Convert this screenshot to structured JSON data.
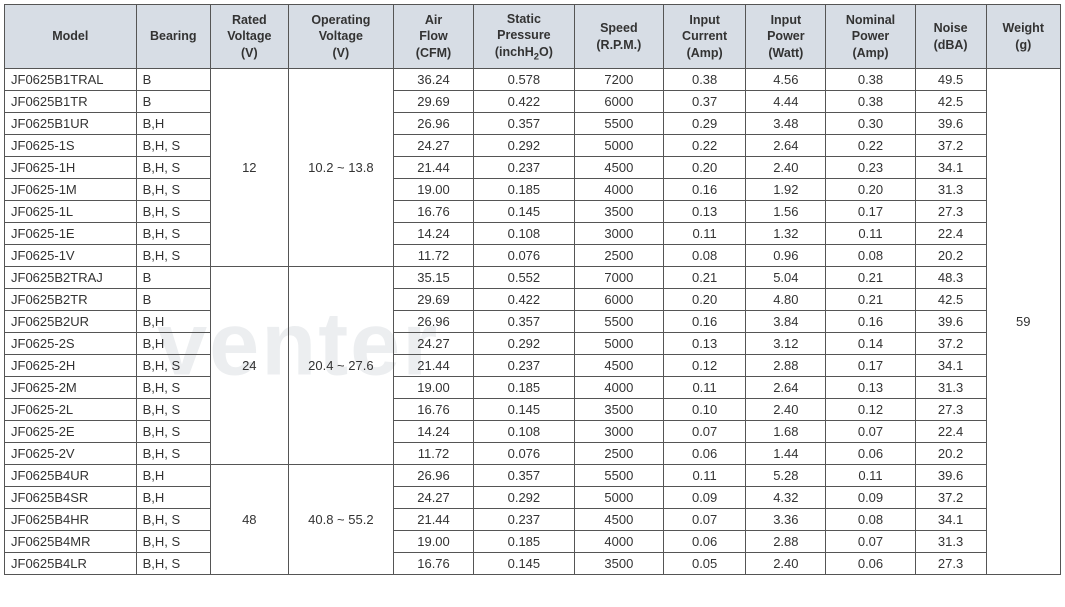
{
  "columns": [
    {
      "label": "Model",
      "class": "col-model"
    },
    {
      "label": "Bearing",
      "class": "col-bearing"
    },
    {
      "label": "Rated\nVoltage\n(V)",
      "class": "col-rated-v"
    },
    {
      "label": "Operating\nVoltage\n(V)",
      "class": "col-op-v"
    },
    {
      "label": "Air\nFlow\n(CFM)",
      "class": "col-air"
    },
    {
      "label": "Static\nPressure\n(inchH₂O)",
      "class": "col-static"
    },
    {
      "label": "Speed\n(R.P.M.)",
      "class": "col-speed"
    },
    {
      "label": "Input\nCurrent\n(Amp)",
      "class": "col-in-cur"
    },
    {
      "label": "Input\nPower\n(Watt)",
      "class": "col-in-pow"
    },
    {
      "label": "Nominal\nPower\n(Amp)",
      "class": "col-nom-pow"
    },
    {
      "label": "Noise\n(dBA)",
      "class": "col-noise"
    },
    {
      "label": "Weight\n(g)",
      "class": "col-weight"
    }
  ],
  "groups": [
    {
      "rated_voltage": "12",
      "operating_voltage": "10.2 ~ 13.8",
      "rows": [
        {
          "model": "JF0625B1TRAL",
          "bearing": "B",
          "air": "36.24",
          "static": "0.578",
          "speed": "7200",
          "in_cur": "0.38",
          "in_pow": "4.56",
          "nom_pow": "0.38",
          "noise": "49.5"
        },
        {
          "model": "JF0625B1TR",
          "bearing": "B",
          "air": "29.69",
          "static": "0.422",
          "speed": "6000",
          "in_cur": "0.37",
          "in_pow": "4.44",
          "nom_pow": "0.38",
          "noise": "42.5"
        },
        {
          "model": "JF0625B1UR",
          "bearing": "B,H",
          "air": "26.96",
          "static": "0.357",
          "speed": "5500",
          "in_cur": "0.29",
          "in_pow": "3.48",
          "nom_pow": "0.30",
          "noise": "39.6"
        },
        {
          "model": "JF0625-1S",
          "bearing": "B,H, S",
          "air": "24.27",
          "static": "0.292",
          "speed": "5000",
          "in_cur": "0.22",
          "in_pow": "2.64",
          "nom_pow": "0.22",
          "noise": "37.2"
        },
        {
          "model": "JF0625-1H",
          "bearing": "B,H, S",
          "air": "21.44",
          "static": "0.237",
          "speed": "4500",
          "in_cur": "0.20",
          "in_pow": "2.40",
          "nom_pow": "0.23",
          "noise": "34.1"
        },
        {
          "model": "JF0625-1M",
          "bearing": "B,H, S",
          "air": "19.00",
          "static": "0.185",
          "speed": "4000",
          "in_cur": "0.16",
          "in_pow": "1.92",
          "nom_pow": "0.20",
          "noise": "31.3"
        },
        {
          "model": "JF0625-1L",
          "bearing": "B,H, S",
          "air": "16.76",
          "static": "0.145",
          "speed": "3500",
          "in_cur": "0.13",
          "in_pow": "1.56",
          "nom_pow": "0.17",
          "noise": "27.3"
        },
        {
          "model": "JF0625-1E",
          "bearing": "B,H, S",
          "air": "14.24",
          "static": "0.108",
          "speed": "3000",
          "in_cur": "0.11",
          "in_pow": "1.32",
          "nom_pow": "0.11",
          "noise": "22.4"
        },
        {
          "model": "JF0625-1V",
          "bearing": "B,H, S",
          "air": "11.72",
          "static": "0.076",
          "speed": "2500",
          "in_cur": "0.08",
          "in_pow": "0.96",
          "nom_pow": "0.08",
          "noise": "20.2"
        }
      ]
    },
    {
      "rated_voltage": "24",
      "operating_voltage": "20.4 ~ 27.6",
      "rows": [
        {
          "model": "JF0625B2TRAJ",
          "bearing": "B",
          "air": "35.15",
          "static": "0.552",
          "speed": "7000",
          "in_cur": "0.21",
          "in_pow": "5.04",
          "nom_pow": "0.21",
          "noise": "48.3"
        },
        {
          "model": "JF0625B2TR",
          "bearing": "B",
          "air": "29.69",
          "static": "0.422",
          "speed": "6000",
          "in_cur": "0.20",
          "in_pow": "4.80",
          "nom_pow": "0.21",
          "noise": "42.5"
        },
        {
          "model": "JF0625B2UR",
          "bearing": "B,H",
          "air": "26.96",
          "static": "0.357",
          "speed": "5500",
          "in_cur": "0.16",
          "in_pow": "3.84",
          "nom_pow": "0.16",
          "noise": "39.6"
        },
        {
          "model": "JF0625-2S",
          "bearing": "B,H",
          "air": "24.27",
          "static": "0.292",
          "speed": "5000",
          "in_cur": "0.13",
          "in_pow": "3.12",
          "nom_pow": "0.14",
          "noise": "37.2"
        },
        {
          "model": "JF0625-2H",
          "bearing": "B,H, S",
          "air": "21.44",
          "static": "0.237",
          "speed": "4500",
          "in_cur": "0.12",
          "in_pow": "2.88",
          "nom_pow": "0.17",
          "noise": "34.1"
        },
        {
          "model": "JF0625-2M",
          "bearing": "B,H, S",
          "air": "19.00",
          "static": "0.185",
          "speed": "4000",
          "in_cur": "0.11",
          "in_pow": "2.64",
          "nom_pow": "0.13",
          "noise": "31.3"
        },
        {
          "model": "JF0625-2L",
          "bearing": "B,H, S",
          "air": "16.76",
          "static": "0.145",
          "speed": "3500",
          "in_cur": "0.10",
          "in_pow": "2.40",
          "nom_pow": "0.12",
          "noise": "27.3"
        },
        {
          "model": "JF0625-2E",
          "bearing": "B,H, S",
          "air": "14.24",
          "static": "0.108",
          "speed": "3000",
          "in_cur": "0.07",
          "in_pow": "1.68",
          "nom_pow": "0.07",
          "noise": "22.4"
        },
        {
          "model": "JF0625-2V",
          "bearing": "B,H, S",
          "air": "11.72",
          "static": "0.076",
          "speed": "2500",
          "in_cur": "0.06",
          "in_pow": "1.44",
          "nom_pow": "0.06",
          "noise": "20.2"
        }
      ]
    },
    {
      "rated_voltage": "48",
      "operating_voltage": "40.8 ~ 55.2",
      "rows": [
        {
          "model": "JF0625B4UR",
          "bearing": "B,H",
          "air": "26.96",
          "static": "0.357",
          "speed": "5500",
          "in_cur": "0.11",
          "in_pow": "5.28",
          "nom_pow": "0.11",
          "noise": "39.6"
        },
        {
          "model": "JF0625B4SR",
          "bearing": "B,H",
          "air": "24.27",
          "static": "0.292",
          "speed": "5000",
          "in_cur": "0.09",
          "in_pow": "4.32",
          "nom_pow": "0.09",
          "noise": "37.2"
        },
        {
          "model": "JF0625B4HR",
          "bearing": "B,H, S",
          "air": "21.44",
          "static": "0.237",
          "speed": "4500",
          "in_cur": "0.07",
          "in_pow": "3.36",
          "nom_pow": "0.08",
          "noise": "34.1"
        },
        {
          "model": "JF0625B4MR",
          "bearing": "B,H, S",
          "air": "19.00",
          "static": "0.185",
          "speed": "4000",
          "in_cur": "0.06",
          "in_pow": "2.88",
          "nom_pow": "0.07",
          "noise": "31.3"
        },
        {
          "model": "JF0625B4LR",
          "bearing": "B,H, S",
          "air": "16.76",
          "static": "0.145",
          "speed": "3500",
          "in_cur": "0.05",
          "in_pow": "2.40",
          "nom_pow": "0.06",
          "noise": "27.3"
        }
      ]
    }
  ],
  "weight": "59",
  "watermark_text": "venter",
  "header_bg": "#d7dde5",
  "border_color": "#555555"
}
